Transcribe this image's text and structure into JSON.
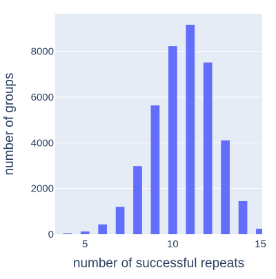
{
  "chart_data": {
    "type": "bar",
    "title": "",
    "xlabel": "number of successful repeats",
    "ylabel": "number of groups",
    "x": [
      4,
      5,
      6,
      7,
      8,
      9,
      10,
      11,
      12,
      13,
      14,
      15
    ],
    "values": [
      40,
      120,
      430,
      1200,
      2980,
      5640,
      8230,
      9170,
      7520,
      4110,
      1450,
      240
    ],
    "xlim": [
      3.3,
      15.1
    ],
    "ylim": [
      0,
      9650
    ],
    "x_ticks": [
      5,
      10,
      15
    ],
    "x_tick_labels": [
      "5",
      "10",
      "15"
    ],
    "y_ticks": [
      0,
      2000,
      4000,
      6000,
      8000
    ],
    "y_tick_labels": [
      "0",
      "2000",
      "4000",
      "6000",
      "8000"
    ],
    "grid": true,
    "legend": "none",
    "bar_color": "#636efa",
    "plot_background": "#e5ecf6",
    "gridline_color": "#ffffff",
    "text_color": "#2a3f5f"
  }
}
